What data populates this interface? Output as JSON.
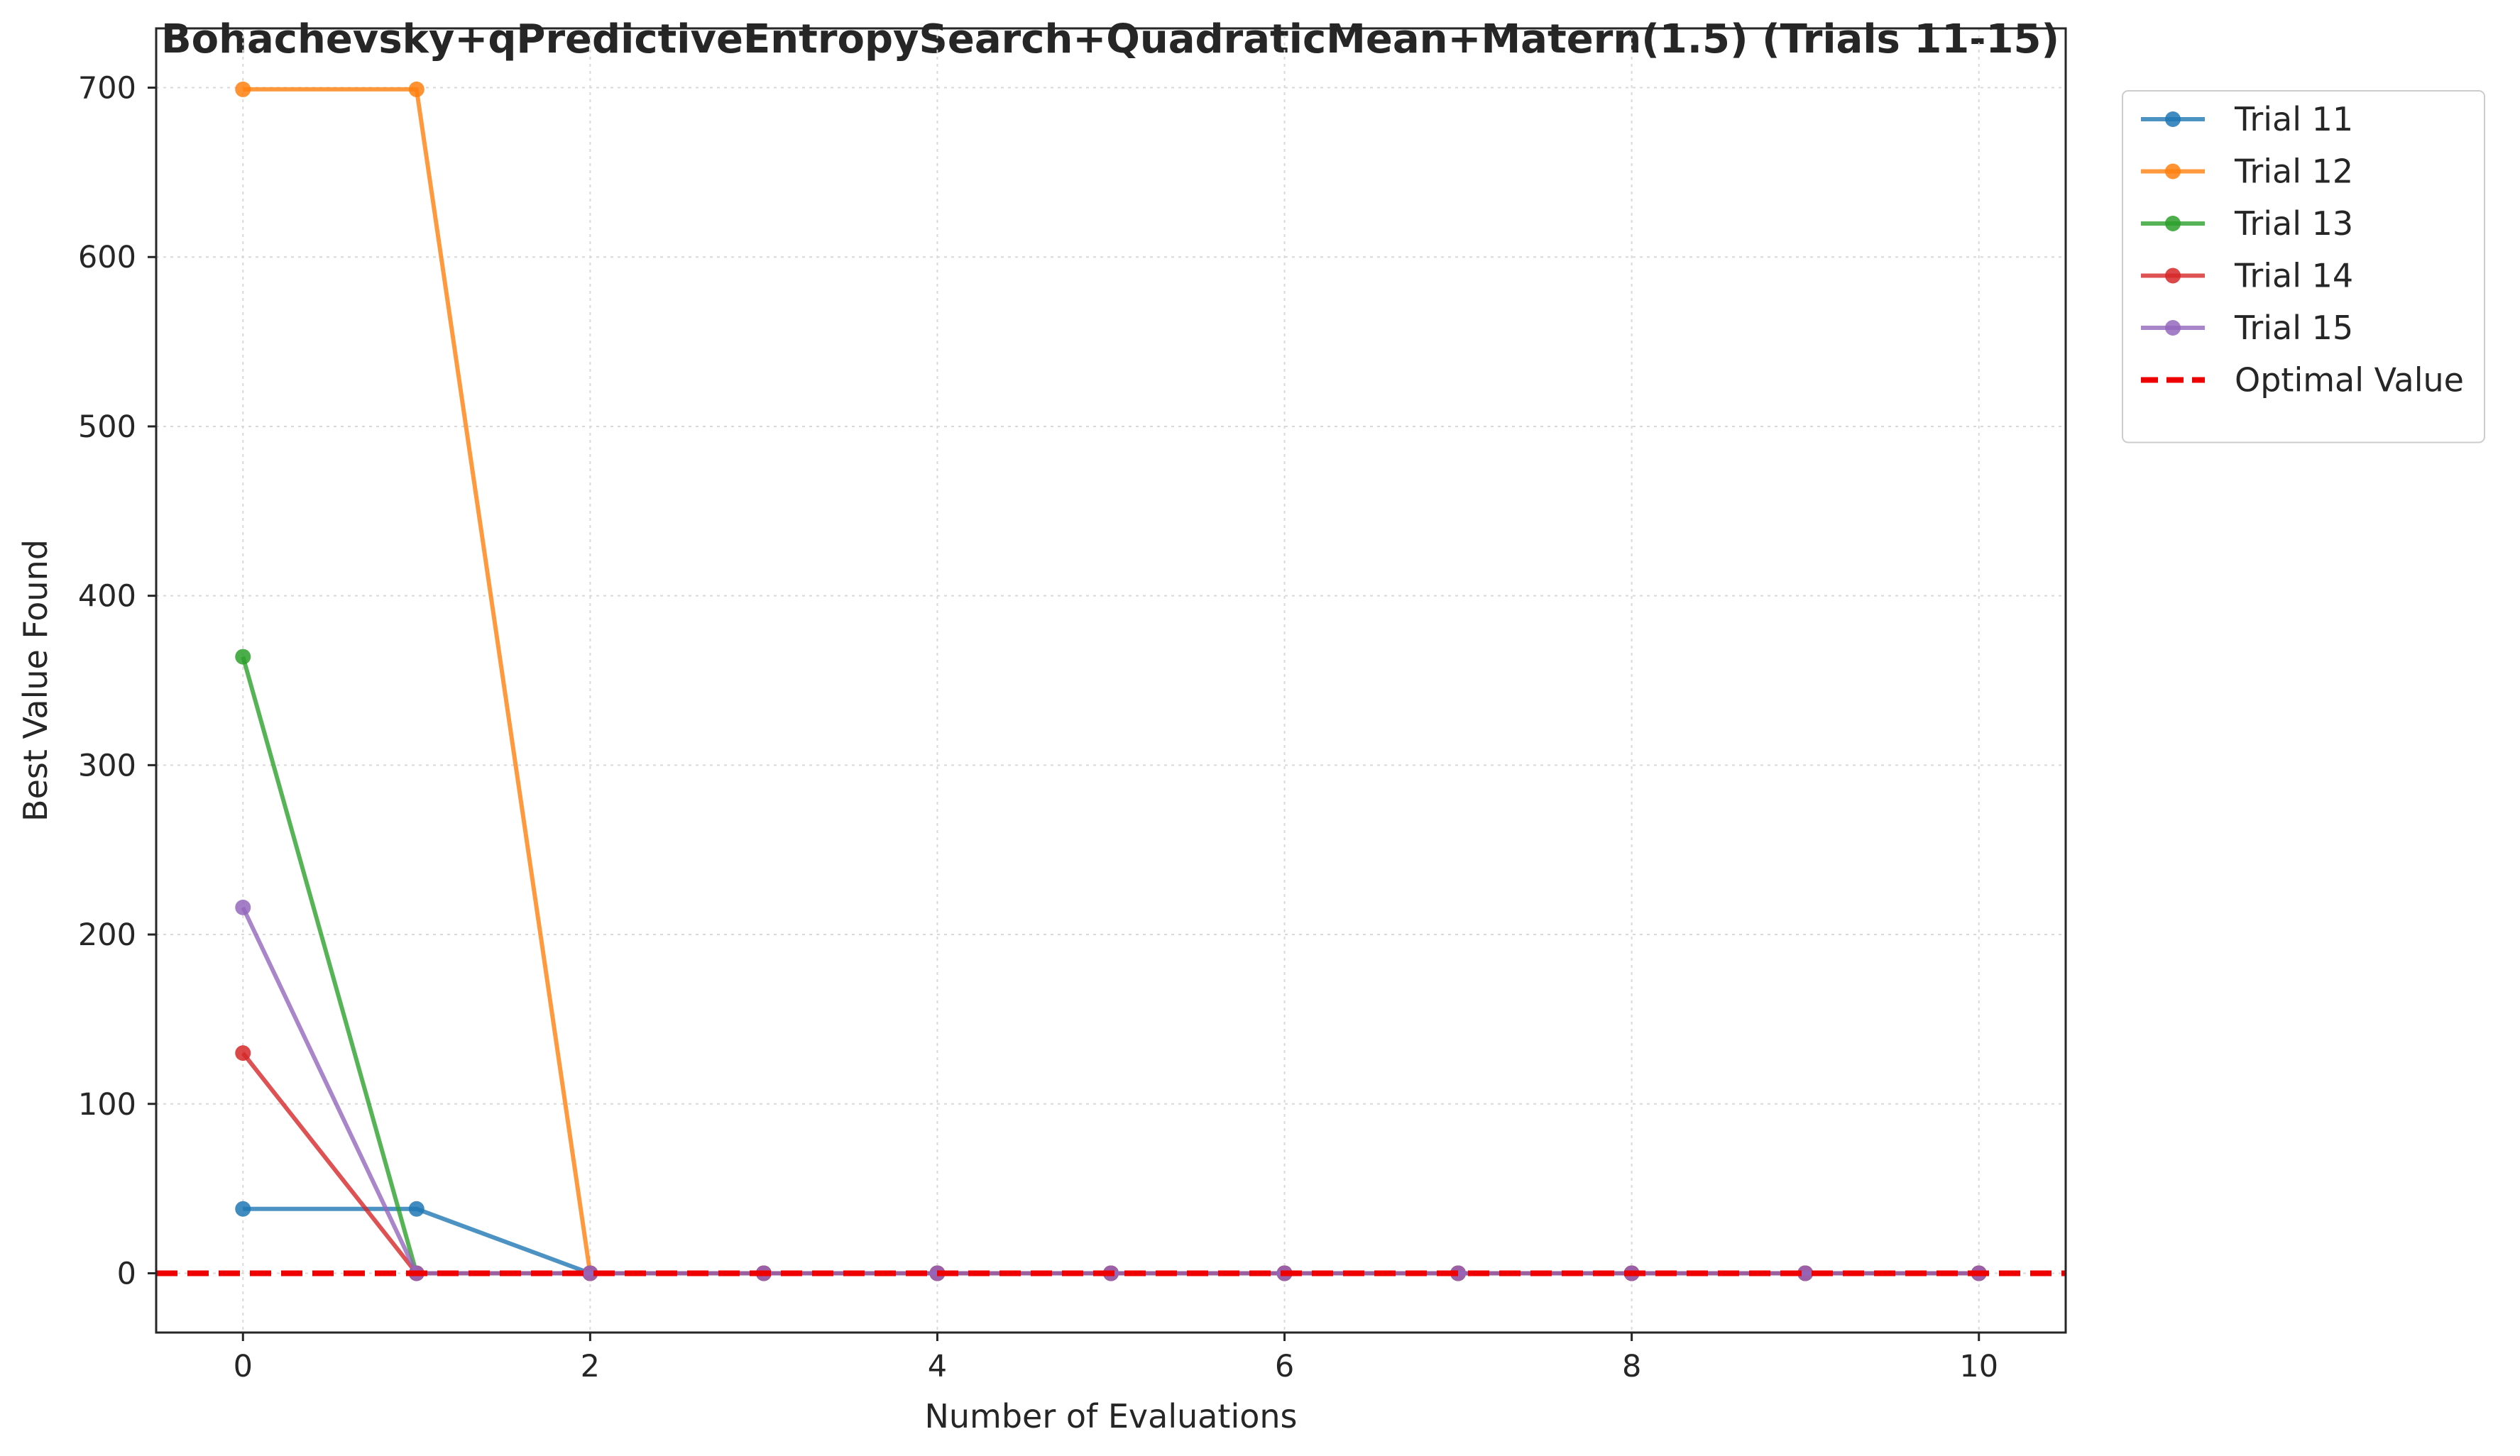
{
  "chart_data": {
    "type": "line",
    "title": "Bohachevsky+qPredictiveEntropySearch+QuadraticMean+Matern(1.5) (Trials 11-15)",
    "xlabel": "Number of Evaluations",
    "ylabel": "Best Value Found",
    "xlim": [
      -0.5,
      10.5
    ],
    "ylim": [
      -35,
      735
    ],
    "xticks": [
      0,
      2,
      4,
      6,
      8,
      10
    ],
    "yticks": [
      0,
      100,
      200,
      300,
      400,
      500,
      600,
      700
    ],
    "grid": true,
    "legend_position": "outside-top-right",
    "x": [
      0,
      1,
      2,
      3,
      4,
      5,
      6,
      7,
      8,
      9,
      10
    ],
    "series": [
      {
        "name": "Trial 11",
        "color": "#1f77b4",
        "values": [
          38,
          38,
          0,
          0,
          0,
          0,
          0,
          0,
          0,
          0,
          0
        ]
      },
      {
        "name": "Trial 12",
        "color": "#ff7f0e",
        "values": [
          699,
          699,
          0,
          0,
          0,
          0,
          0,
          0,
          0,
          0,
          0
        ]
      },
      {
        "name": "Trial 13",
        "color": "#2ca02c",
        "values": [
          364,
          0,
          0,
          0,
          0,
          0,
          0,
          0,
          0,
          0,
          0
        ]
      },
      {
        "name": "Trial 14",
        "color": "#d62728",
        "values": [
          130,
          0,
          0,
          0,
          0,
          0,
          0,
          0,
          0,
          0,
          0
        ]
      },
      {
        "name": "Trial 15",
        "color": "#9467bd",
        "values": [
          216,
          0,
          0,
          0,
          0,
          0,
          0,
          0,
          0,
          0,
          0
        ]
      }
    ],
    "reference_line": {
      "name": "Optimal Value",
      "value": 0,
      "color": "#ee0000",
      "style": "dashed"
    }
  }
}
